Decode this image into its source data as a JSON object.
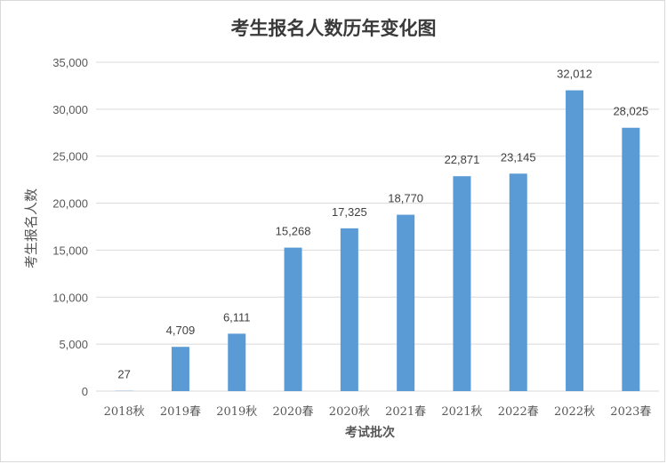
{
  "chart_data": {
    "type": "bar",
    "title": "考生报名人数历年变化图",
    "xlabel": "考试批次",
    "ylabel": "考生报名人数",
    "categories": [
      "2018秋",
      "2019春",
      "2019秋",
      "2020春",
      "2020秋",
      "2021春",
      "2021秋",
      "2022春",
      "2022秋",
      "2023春"
    ],
    "values": [
      27,
      4709,
      6111,
      15268,
      17325,
      18770,
      22871,
      23145,
      32012,
      28025
    ],
    "data_labels": [
      "27",
      "4,709",
      "6,111",
      "15,268",
      "17,325",
      "18,770",
      "22,871",
      "23,145",
      "32,012",
      "28,025"
    ],
    "yticks": [
      0,
      5000,
      10000,
      15000,
      20000,
      25000,
      30000,
      35000
    ],
    "ytick_labels": [
      "0",
      "5,000",
      "10,000",
      "15,000",
      "20,000",
      "25,000",
      "30,000",
      "35,000"
    ],
    "ylim": [
      0,
      35000
    ],
    "grid": true,
    "legend": "none",
    "bar_color": "#5b9bd5",
    "gridline_color": "#d9d9d9"
  }
}
